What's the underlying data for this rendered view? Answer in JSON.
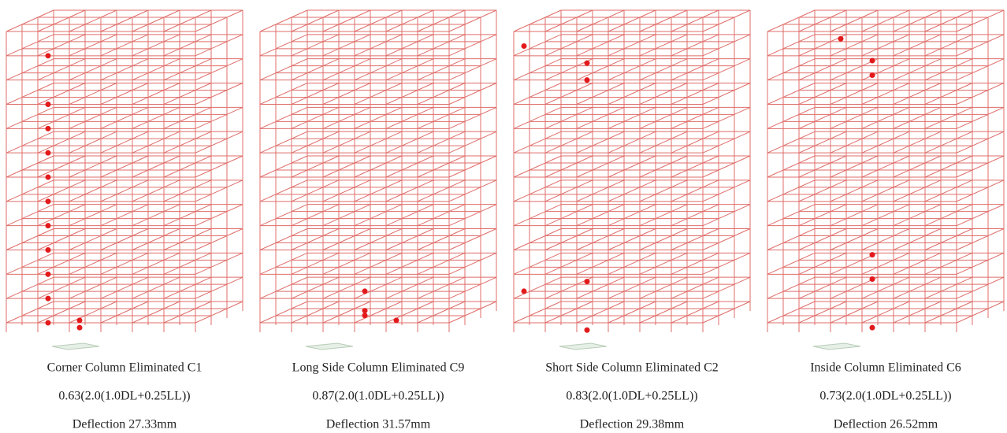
{
  "panels": [
    {
      "caption": "Corner Column Eliminated C1",
      "ratio": "0.63(2.0(1.0DL+0.25LL))",
      "deflection": "Deflection 27.33mm"
    },
    {
      "caption": "Long Side Column Eliminated C9",
      "ratio": "0.87(2.0(1.0DL+0.25LL))",
      "deflection": "Deflection 31.57mm"
    },
    {
      "caption": "Short Side Column Eliminated C2",
      "ratio": "0.83(2.0(1.0DL+0.25LL))",
      "deflection": "Deflection 29.38mm"
    },
    {
      "caption": "Inside Column Eliminated C6",
      "ratio": "0.73(2.0(1.0DL+0.25LL))",
      "deflection": "Deflection 26.52mm"
    }
  ]
}
